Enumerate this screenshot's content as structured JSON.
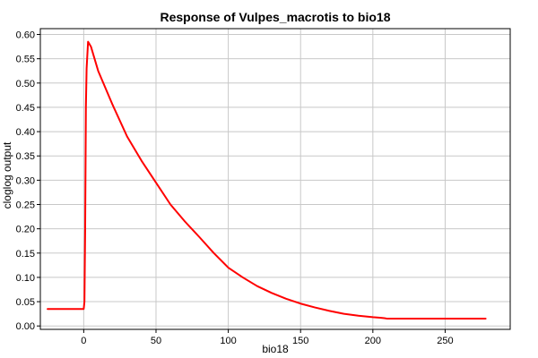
{
  "chart_data": {
    "type": "line",
    "title": "Response of Vulpes_macrotis to bio18",
    "xlabel": "bio18",
    "ylabel": "cloglog output",
    "xlim": [
      -30,
      295
    ],
    "ylim": [
      -0.007,
      0.612
    ],
    "xticks": [
      0,
      50,
      100,
      150,
      200,
      250
    ],
    "yticks": [
      "0.00",
      "0.05",
      "0.10",
      "0.15",
      "0.20",
      "0.25",
      "0.30",
      "0.35",
      "0.40",
      "0.45",
      "0.50",
      "0.55",
      "0.60"
    ],
    "grid": true,
    "legend": "none",
    "series": [
      {
        "color": "#ff0000",
        "x": [
          -25,
          0,
          0.5,
          1,
          1.5,
          2,
          3,
          5,
          10,
          20,
          30,
          40,
          50,
          60,
          70,
          80,
          90,
          100,
          110,
          120,
          130,
          140,
          150,
          160,
          170,
          180,
          190,
          200,
          205,
          208,
          210,
          220,
          240,
          260,
          278
        ],
        "y": [
          0.035,
          0.035,
          0.05,
          0.2,
          0.45,
          0.53,
          0.585,
          0.575,
          0.525,
          0.455,
          0.39,
          0.34,
          0.295,
          0.25,
          0.215,
          0.183,
          0.15,
          0.12,
          0.1,
          0.082,
          0.068,
          0.056,
          0.046,
          0.038,
          0.031,
          0.025,
          0.021,
          0.018,
          0.017,
          0.016,
          0.015,
          0.015,
          0.015,
          0.015,
          0.015
        ]
      }
    ]
  }
}
